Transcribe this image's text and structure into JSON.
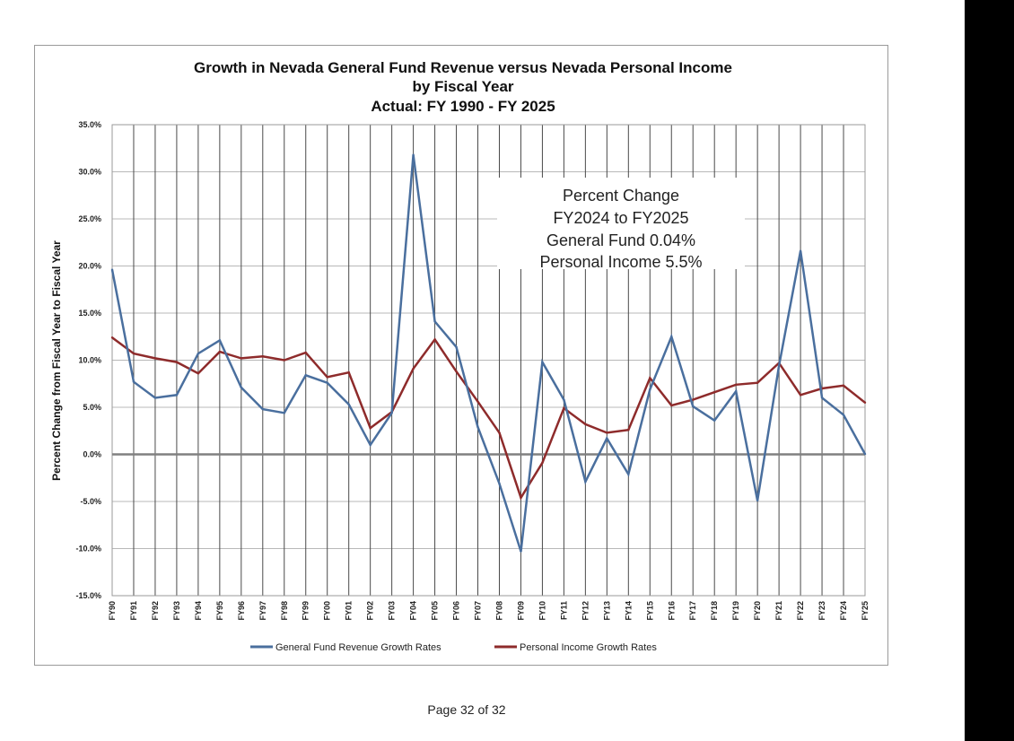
{
  "page": {
    "footer": "Page 32 of 32"
  },
  "colors": {
    "revenue": "#4a6f9e",
    "income": "#8e2b2b",
    "grid": "#b8b8b8",
    "axis": "#808080"
  },
  "chart_data": {
    "type": "line",
    "title": [
      "Growth in Nevada General Fund Revenue versus Nevada Personal Income",
      "by Fiscal Year",
      "Actual: FY 1990 - FY 2025"
    ],
    "ylabel": "Percent Change from Fiscal Year to Fiscal Year",
    "xlabel": "",
    "ylim": [
      -15,
      35
    ],
    "yticks": [
      "35.0%",
      "30.0%",
      "25.0%",
      "20.0%",
      "15.0%",
      "10.0%",
      "5.0%",
      "0.0%",
      "-5.0%",
      "-10.0%",
      "-15.0%"
    ],
    "categories": [
      "FY90",
      "FY91",
      "FY92",
      "FY93",
      "FY94",
      "FY95",
      "FY96",
      "FY97",
      "FY98",
      "FY99",
      "FY00",
      "FY01",
      "FY02",
      "FY03",
      "FY04",
      "FY05",
      "FY06",
      "FY07",
      "FY08",
      "FY09",
      "FY10",
      "FY11",
      "FY12",
      "FY13",
      "FY14",
      "FY15",
      "FY16",
      "FY17",
      "FY18",
      "FY19",
      "FY20",
      "FY21",
      "FY22",
      "FY23",
      "FY24",
      "FY25"
    ],
    "series": [
      {
        "name": "General Fund Revenue Growth Rates",
        "values": [
          19.6,
          7.7,
          6.0,
          6.3,
          10.7,
          12.1,
          7.1,
          4.8,
          4.4,
          8.4,
          7.6,
          5.3,
          1.0,
          4.4,
          31.8,
          14.1,
          11.4,
          2.9,
          -3.1,
          -10.3,
          9.8,
          5.8,
          -2.9,
          1.7,
          -2.1,
          6.9,
          12.5,
          5.1,
          3.6,
          6.7,
          -4.9,
          9.4,
          21.6,
          6.0,
          4.2,
          0.04
        ]
      },
      {
        "name": "Personal Income Growth Rates",
        "values": [
          12.4,
          10.7,
          10.2,
          9.8,
          8.6,
          10.9,
          10.2,
          10.4,
          10.0,
          10.8,
          8.2,
          8.7,
          2.8,
          4.5,
          9.1,
          12.2,
          8.8,
          5.6,
          2.3,
          -4.6,
          -0.9,
          4.9,
          3.2,
          2.3,
          2.6,
          8.1,
          5.2,
          5.8,
          6.6,
          7.4,
          7.6,
          9.7,
          6.3,
          7.0,
          7.3,
          5.5
        ]
      }
    ],
    "annotation": [
      "Percent Change",
      "FY2024 to FY2025",
      "General Fund 0.04%",
      "Personal Income 5.5%"
    ],
    "legend": [
      "General Fund Revenue Growth Rates",
      "Personal Income Growth Rates"
    ],
    "legend_position": "bottom",
    "grid": true
  }
}
